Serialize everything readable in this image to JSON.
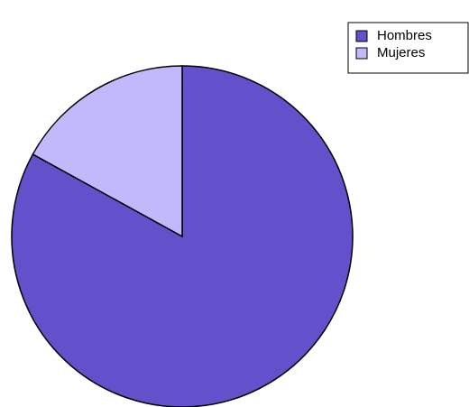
{
  "chart_data": {
    "type": "pie",
    "categories": [
      "Hombres",
      "Mujeres"
    ],
    "values": [
      83,
      17
    ],
    "colors": [
      "#6351cc",
      "#c2b8fc"
    ],
    "legend": "top-right"
  }
}
